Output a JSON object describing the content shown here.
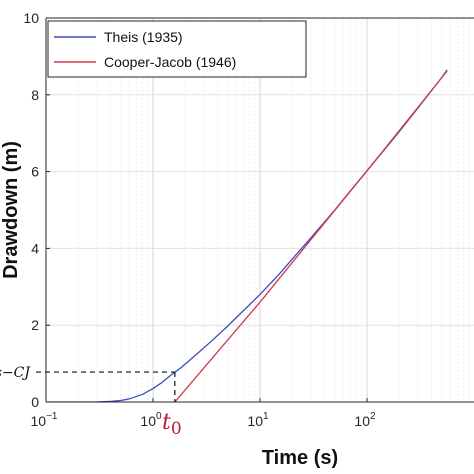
{
  "chart_data": {
    "type": "line",
    "xlabel": "Time (s)",
    "ylabel": "Drawdown (m)",
    "xscale": "log",
    "xlim": [
      0.1,
      1000
    ],
    "ylim": [
      0,
      10
    ],
    "grid": true,
    "legend_position": "top-left",
    "x_tick_labels": [
      {
        "base": "10",
        "exp": "−1",
        "value": 0.1
      },
      {
        "base": "10",
        "exp": "0",
        "value": 1
      },
      {
        "base": "10",
        "exp": "1",
        "value": 10
      },
      {
        "base": "10",
        "exp": "2",
        "value": 100
      }
    ],
    "y_ticks": [
      0,
      2,
      4,
      6,
      8,
      10
    ],
    "y_tick_labels": [
      "0",
      "2",
      "4",
      "6",
      "8",
      "10"
    ],
    "series": [
      {
        "name": "Theis (1935)",
        "color": "#3b4cc0",
        "points": [
          [
            0.1,
            0.0
          ],
          [
            0.2,
            0.0
          ],
          [
            0.3,
            0.003
          ],
          [
            0.4,
            0.015
          ],
          [
            0.5,
            0.04
          ],
          [
            0.6,
            0.08
          ],
          [
            0.8,
            0.2
          ],
          [
            1.0,
            0.35
          ],
          [
            1.2,
            0.5
          ],
          [
            1.5,
            0.72
          ],
          [
            1.8,
            0.88
          ],
          [
            2.5,
            1.22
          ],
          [
            3.5,
            1.58
          ],
          [
            5,
            1.98
          ],
          [
            7,
            2.38
          ],
          [
            10,
            2.8
          ],
          [
            15,
            3.32
          ],
          [
            20,
            3.72
          ],
          [
            30,
            4.28
          ],
          [
            50,
            5.0
          ],
          [
            70,
            5.5
          ],
          [
            100,
            6.02
          ],
          [
            200,
            7.04
          ],
          [
            300,
            7.66
          ],
          [
            500,
            8.45
          ],
          [
            560,
            8.65
          ]
        ]
      },
      {
        "name": "Cooper-Jacob (1946)",
        "color": "#d0394f",
        "points": [
          [
            1.6,
            0.0
          ],
          [
            10,
            2.6
          ],
          [
            100,
            6.02
          ],
          [
            560,
            8.62
          ]
        ]
      }
    ],
    "annotations": {
      "t0": {
        "text": "t",
        "sub": "0",
        "x": 1.6,
        "color": "#c0182e"
      },
      "dashed_level": {
        "text": "s−CJ",
        "y": 0.78,
        "x_end": 1.6
      }
    }
  }
}
